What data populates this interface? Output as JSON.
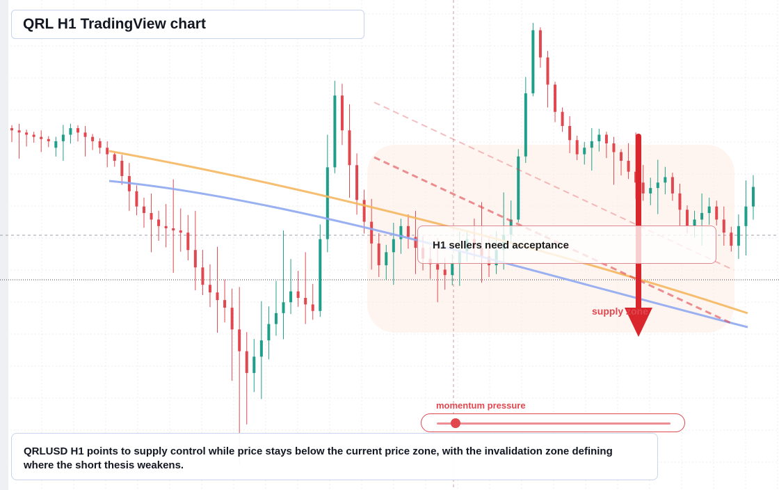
{
  "title": "QRL H1 TradingView chart",
  "annotations": {
    "sellers_label": "H1 sellers need acceptance",
    "supply_zone_label": "supply zone",
    "momentum_label": "momentum pressure",
    "momentum_level": 0.08,
    "note": "QRLUSD H1 points to supply control while price stays below the current price zone, with the invalidation zone defining where the short thesis weakens."
  },
  "colors": {
    "up": "#1f9e89",
    "down": "#e0474f",
    "ma_orange": "#f5b760",
    "ma_blue": "#8fa8f0",
    "arrow": "#d9262c",
    "zone_fill": "#fdece4"
  },
  "chart_data": {
    "type": "candlestick",
    "timeframe": "H1",
    "symbol": "QRLUSD",
    "candles_approx": [
      {
        "o": 70,
        "h": 72,
        "l": 60,
        "c": 68
      },
      {
        "o": 68,
        "h": 70,
        "l": 62,
        "c": 66
      },
      {
        "o": 64,
        "h": 73,
        "l": 58,
        "c": 70
      },
      {
        "o": 70,
        "h": 72,
        "l": 60,
        "c": 66
      },
      {
        "o": 66,
        "h": 68,
        "l": 56,
        "c": 60
      },
      {
        "o": 60,
        "h": 64,
        "l": 40,
        "c": 46
      },
      {
        "o": 46,
        "h": 52,
        "l": 30,
        "c": 40
      },
      {
        "o": 40,
        "h": 55,
        "l": 25,
        "c": 38
      },
      {
        "o": 38,
        "h": 50,
        "l": 15,
        "c": 22
      },
      {
        "o": 22,
        "h": 36,
        "l": 5,
        "c": 15
      },
      {
        "o": 15,
        "h": 28,
        "l": -40,
        "c": -5
      },
      {
        "o": -5,
        "h": 22,
        "l": -18,
        "c": 10
      },
      {
        "o": 10,
        "h": 42,
        "l": 2,
        "c": 20
      },
      {
        "o": 20,
        "h": 34,
        "l": 8,
        "c": 14
      },
      {
        "o": 14,
        "h": 90,
        "l": 10,
        "c": 80
      },
      {
        "o": 80,
        "h": 88,
        "l": 38,
        "c": 48
      },
      {
        "o": 48,
        "h": 55,
        "l": 20,
        "c": 28
      },
      {
        "o": 28,
        "h": 45,
        "l": 18,
        "c": 40
      },
      {
        "o": 40,
        "h": 48,
        "l": 22,
        "c": 30
      },
      {
        "o": 30,
        "h": 38,
        "l": 15,
        "c": 25
      },
      {
        "o": 25,
        "h": 42,
        "l": 18,
        "c": 36
      },
      {
        "o": 36,
        "h": 50,
        "l": 20,
        "c": 28
      },
      {
        "o": 28,
        "h": 55,
        "l": 22,
        "c": 42
      },
      {
        "o": 42,
        "h": 105,
        "l": 40,
        "c": 100
      },
      {
        "o": 100,
        "h": 102,
        "l": 68,
        "c": 75
      },
      {
        "o": 75,
        "h": 78,
        "l": 58,
        "c": 62
      },
      {
        "o": 62,
        "h": 72,
        "l": 55,
        "c": 68
      },
      {
        "o": 68,
        "h": 70,
        "l": 50,
        "c": 60
      },
      {
        "o": 60,
        "h": 72,
        "l": 45,
        "c": 50
      },
      {
        "o": 50,
        "h": 62,
        "l": 42,
        "c": 55
      },
      {
        "o": 55,
        "h": 58,
        "l": 35,
        "c": 40
      },
      {
        "o": 40,
        "h": 52,
        "l": 32,
        "c": 46
      },
      {
        "o": 46,
        "h": 50,
        "l": 30,
        "c": 34
      },
      {
        "o": 34,
        "h": 60,
        "l": 25,
        "c": 52
      }
    ]
  }
}
